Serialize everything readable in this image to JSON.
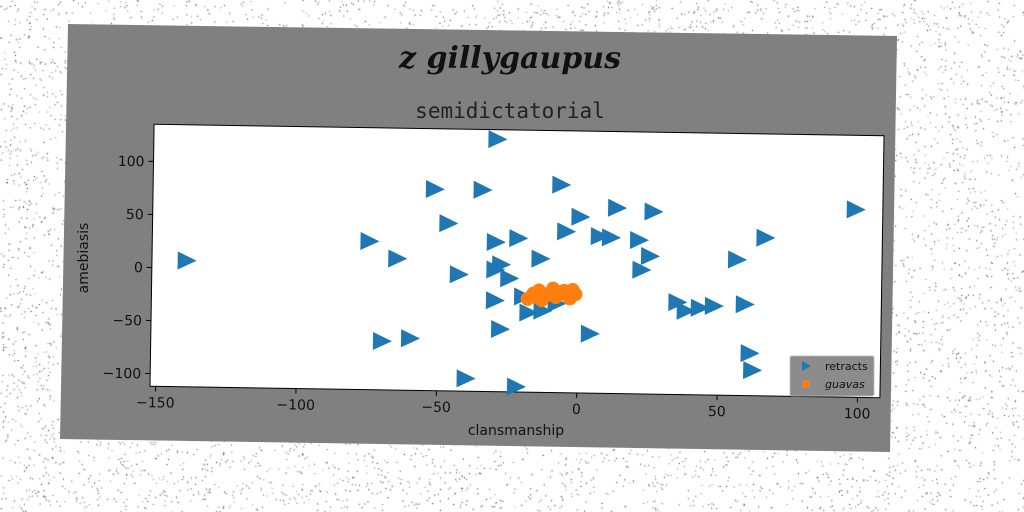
{
  "figure": {
    "suptitle": "z gillygaupus",
    "background": "#808080",
    "page_background": "#ffffff"
  },
  "chart_data": {
    "type": "scatter",
    "title": "semidictatorial",
    "xlabel": "clansmanship",
    "ylabel": "amebiasis",
    "xlim": [
      -152,
      108
    ],
    "ylim": [
      -112,
      135
    ],
    "xticks": [
      -150,
      -100,
      -50,
      0,
      50,
      100
    ],
    "yticks": [
      -100,
      -50,
      0,
      50,
      100
    ],
    "grid": false,
    "legend_position": "lower-right",
    "series": [
      {
        "name": "retracts",
        "marker": "triangle-right",
        "color": "#1f77b4",
        "points": [
          [
            -140,
            7
          ],
          [
            -30,
            126
          ],
          [
            -52,
            78
          ],
          [
            -35,
            78
          ],
          [
            -7,
            84
          ],
          [
            -47,
            46
          ],
          [
            -75,
            28
          ],
          [
            -65,
            12
          ],
          [
            -43,
            -2
          ],
          [
            -30,
            29
          ],
          [
            -22,
            33
          ],
          [
            -14,
            14
          ],
          [
            -28,
            8
          ],
          [
            -30,
            3
          ],
          [
            -25,
            -5
          ],
          [
            -30,
            -26
          ],
          [
            -20,
            -22
          ],
          [
            -28,
            -53
          ],
          [
            -18,
            -37
          ],
          [
            -13,
            -35
          ],
          [
            -22,
            -107
          ],
          [
            -40,
            -100
          ],
          [
            -70,
            -66
          ],
          [
            -60,
            -63
          ],
          [
            -5,
            40
          ],
          [
            0,
            54
          ],
          [
            7,
            36
          ],
          [
            11,
            35
          ],
          [
            13,
            63
          ],
          [
            21,
            33
          ],
          [
            22,
            5
          ],
          [
            25,
            18
          ],
          [
            26,
            60
          ],
          [
            35,
            -25
          ],
          [
            38,
            -33
          ],
          [
            43,
            -30
          ],
          [
            48,
            -28
          ],
          [
            56,
            16
          ],
          [
            59,
            -26
          ],
          [
            61,
            -72
          ],
          [
            62,
            -88
          ],
          [
            66,
            37
          ],
          [
            98,
            65
          ],
          [
            4,
            -56
          ],
          [
            -8,
            -28
          ]
        ]
      },
      {
        "name": "guavas",
        "marker": "circle",
        "color": "#ff7f0e",
        "points": [
          [
            -18,
            -24
          ],
          [
            -16,
            -19
          ],
          [
            -14,
            -16
          ],
          [
            -12,
            -21
          ],
          [
            -10,
            -18
          ],
          [
            -8,
            -22
          ],
          [
            -6,
            -17
          ],
          [
            -4,
            -20
          ],
          [
            -2,
            -15
          ],
          [
            -1,
            -19
          ],
          [
            -3,
            -23
          ],
          [
            -9,
            -14
          ],
          [
            -13,
            -25
          ],
          [
            -15,
            -22
          ],
          [
            -11,
            -20
          ],
          [
            -5,
            -16
          ]
        ]
      }
    ]
  }
}
